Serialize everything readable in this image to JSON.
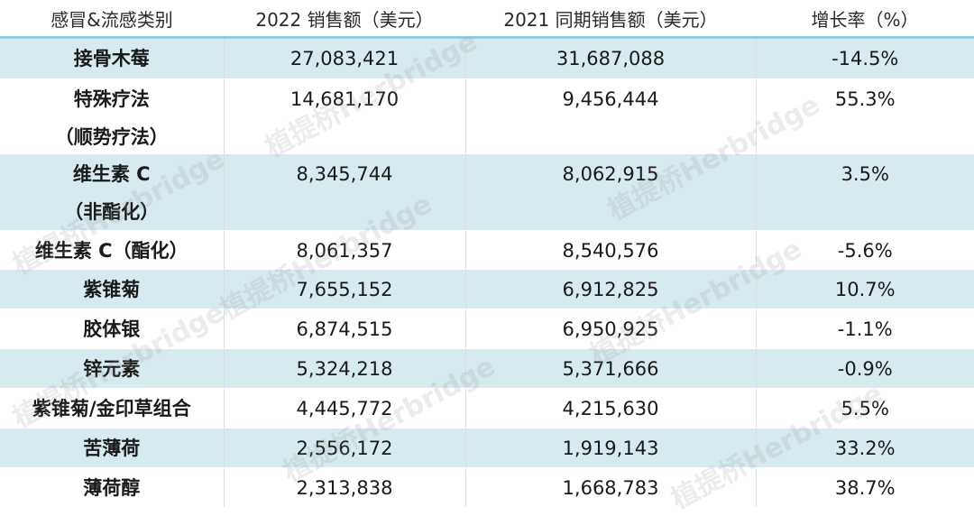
{
  "headers": [
    "感冒&流感类别",
    "2022 销售额（美元）",
    "2021 同期销售额（美元）",
    "增长率（%）"
  ],
  "rows": [
    {
      "name": [
        "接骨木莓"
      ],
      "sales_2022": "27,083,421",
      "sales_2021": "31,687,088",
      "growth": "-14.5%"
    },
    {
      "name": [
        "特殊疗法",
        "（顺势疗法）"
      ],
      "sales_2022": "14,681,170",
      "sales_2021": "9,456,444",
      "growth": "55.3%"
    },
    {
      "name": [
        "维生素 C",
        "（非酯化）"
      ],
      "sales_2022": "8,345,744",
      "sales_2021": "8,062,915",
      "growth": "3.5%"
    },
    {
      "name": [
        "维生素 C（酯化）"
      ],
      "sales_2022": "8,061,357",
      "sales_2021": "8,540,576",
      "growth": "-5.6%"
    },
    {
      "name": [
        "紫锥菊"
      ],
      "sales_2022": "7,655,152",
      "sales_2021": "6,912,825",
      "growth": "10.7%"
    },
    {
      "name": [
        "胶体银"
      ],
      "sales_2022": "6,874,515",
      "sales_2021": "6,950,925",
      "growth": "-1.1%"
    },
    {
      "name": [
        "锌元素"
      ],
      "sales_2022": "5,324,218",
      "sales_2021": "5,371,666",
      "growth": "-0.9%"
    },
    {
      "name": [
        "紫锥菊/金印草组合"
      ],
      "sales_2022": "4,445,772",
      "sales_2021": "4,215,630",
      "growth": "5.5%"
    },
    {
      "name": [
        "苦薄荷"
      ],
      "sales_2022": "2,556,172",
      "sales_2021": "1,919,143",
      "growth": "33.2%"
    },
    {
      "name": [
        "薄荷醇"
      ],
      "sales_2022": "2,313,838",
      "sales_2021": "1,668,783",
      "growth": "38.7%"
    }
  ],
  "watermark": "植提桥Herbridge"
}
